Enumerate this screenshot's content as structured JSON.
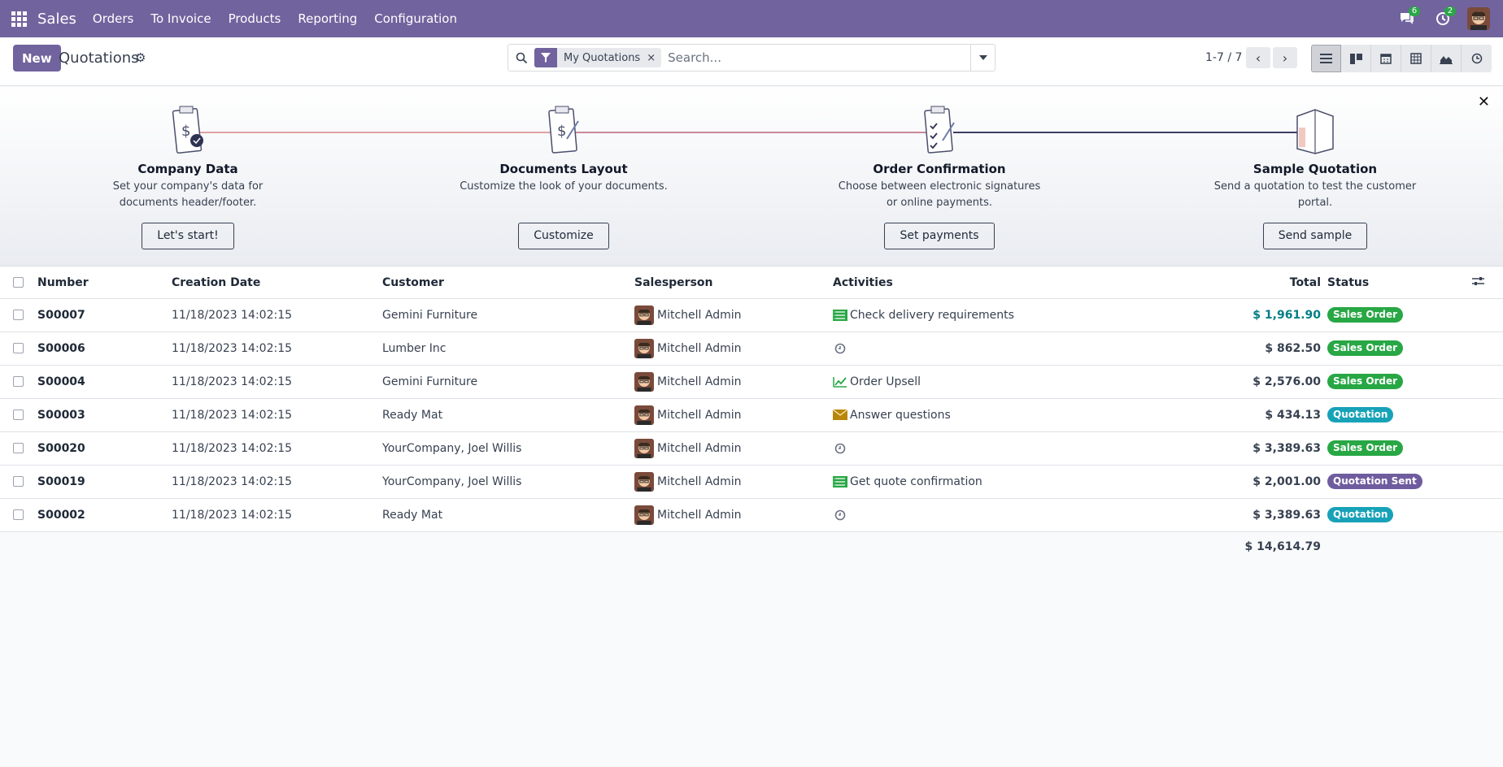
{
  "navbar": {
    "app_name": "Sales",
    "menu": [
      "Orders",
      "To Invoice",
      "Products",
      "Reporting",
      "Configuration"
    ],
    "messages_count": "6",
    "activities_count": "2"
  },
  "control_panel": {
    "new_label": "New",
    "title": "Quotations",
    "search": {
      "facet": "My Quotations",
      "placeholder": "Search..."
    },
    "pager": "1-7 / 7"
  },
  "onboarding": {
    "steps": [
      {
        "title": "Company Data",
        "description": "Set your company's data for documents header/footer.",
        "button": "Let's start!"
      },
      {
        "title": "Documents Layout",
        "description": "Customize the look of your documents.",
        "button": "Customize"
      },
      {
        "title": "Order Confirmation",
        "description": "Choose between electronic signatures or online payments.",
        "button": "Set payments"
      },
      {
        "title": "Sample Quotation",
        "description": "Send a quotation to test the customer portal.",
        "button": "Send sample"
      }
    ]
  },
  "table": {
    "headers": {
      "number": "Number",
      "creation_date": "Creation Date",
      "customer": "Customer",
      "salesperson": "Salesperson",
      "activities": "Activities",
      "total": "Total",
      "status": "Status"
    },
    "rows": [
      {
        "number": "S00007",
        "date": "11/18/2023 14:02:15",
        "customer": "Gemini Furniture",
        "salesperson": "Mitchell Admin",
        "activity_icon": "list-icon",
        "activity": "Check delivery requirements",
        "total": "$ 1,961.90",
        "status": "Sales Order"
      },
      {
        "number": "S00006",
        "date": "11/18/2023 14:02:15",
        "customer": "Lumber Inc",
        "salesperson": "Mitchell Admin",
        "activity_icon": "clock-icon",
        "activity": "",
        "total": "$ 862.50",
        "status": "Sales Order"
      },
      {
        "number": "S00004",
        "date": "11/18/2023 14:02:15",
        "customer": "Gemini Furniture",
        "salesperson": "Mitchell Admin",
        "activity_icon": "chart-icon",
        "activity": "Order Upsell",
        "total": "$ 2,576.00",
        "status": "Sales Order"
      },
      {
        "number": "S00003",
        "date": "11/18/2023 14:02:15",
        "customer": "Ready Mat",
        "salesperson": "Mitchell Admin",
        "activity_icon": "envelope-icon",
        "activity": "Answer questions",
        "total": "$ 434.13",
        "status": "Quotation"
      },
      {
        "number": "S00020",
        "date": "11/18/2023 14:02:15",
        "customer": "YourCompany, Joel Willis",
        "salesperson": "Mitchell Admin",
        "activity_icon": "clock-icon",
        "activity": "",
        "total": "$ 3,389.63",
        "status": "Sales Order"
      },
      {
        "number": "S00019",
        "date": "11/18/2023 14:02:15",
        "customer": "YourCompany, Joel Willis",
        "salesperson": "Mitchell Admin",
        "activity_icon": "list-icon",
        "activity": "Get quote confirmation",
        "total": "$ 2,001.00",
        "status": "Quotation Sent"
      },
      {
        "number": "S00002",
        "date": "11/18/2023 14:02:15",
        "customer": "Ready Mat",
        "salesperson": "Mitchell Admin",
        "activity_icon": "clock-icon",
        "activity": "",
        "total": "$ 3,389.63",
        "status": "Quotation"
      }
    ],
    "sum_total": "$ 14,614.79"
  },
  "colors": {
    "brand": "#71639e",
    "sales_order": "#28a745",
    "quotation": "#17a2b8",
    "quotation_sent": "#6f5c9e",
    "highlight_total": "#017e84"
  }
}
